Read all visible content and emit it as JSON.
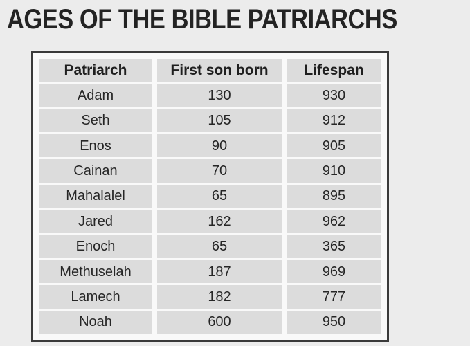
{
  "title": "AGES OF THE BIBLE PATRIARCHS",
  "colors": {
    "page_background": "#ececec",
    "table_frame_background": "#f9f9f9",
    "table_border": "#3a3a3a",
    "cell_background": "#dcdcdc",
    "text": "#262626",
    "title_text": "#232323"
  },
  "chart_data": {
    "type": "table",
    "title": "AGES OF THE BIBLE PATRIARCHS",
    "columns": [
      "Patriarch",
      "First son born",
      "Lifespan"
    ],
    "rows": [
      [
        "Adam",
        130,
        930
      ],
      [
        "Seth",
        105,
        912
      ],
      [
        "Enos",
        90,
        905
      ],
      [
        "Cainan",
        70,
        910
      ],
      [
        "Mahalalel",
        65,
        895
      ],
      [
        "Jared",
        162,
        962
      ],
      [
        "Enoch",
        65,
        365
      ],
      [
        "Methuselah",
        187,
        969
      ],
      [
        "Lamech",
        182,
        777
      ],
      [
        "Noah",
        600,
        950
      ]
    ]
  }
}
